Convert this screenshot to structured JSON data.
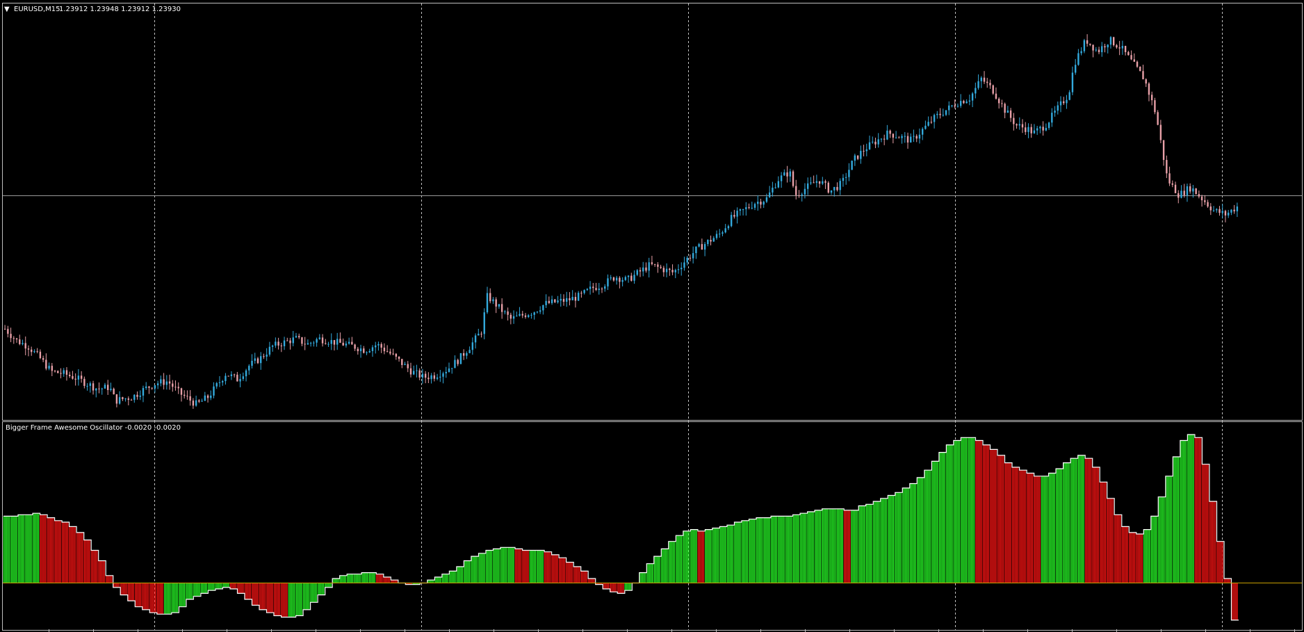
{
  "main_panel": {
    "symbol_label": "EURUSD,M15",
    "ohlc_label": "1.23912 1.23948 1.23912 1.23930",
    "collapse_glyph": "▼"
  },
  "indicator_panel": {
    "title": "Bigger Frame Awesome Oscillator -0.0020 -0.0020"
  },
  "colors": {
    "background": "#000000",
    "grid": "#c0c0c0",
    "bull_candle": "#33aadd",
    "bear_candle": "#e8a0a8",
    "ao_up": "#22dd22",
    "ao_down": "#dd1111",
    "ao_outline": "#ffffff",
    "zero_line": "#c8a000"
  },
  "chart_data": [
    {
      "type": "candlestick",
      "title": "EURUSD,M15",
      "close_path": [
        [
          0,
          0.215
        ],
        [
          2,
          0.185
        ],
        [
          4,
          0.17
        ],
        [
          6,
          0.14
        ],
        [
          8,
          0.105
        ],
        [
          10,
          0.1
        ],
        [
          12,
          0.09
        ],
        [
          14,
          0.075
        ],
        [
          16,
          0.06
        ],
        [
          18,
          0.065
        ],
        [
          19,
          0.03
        ],
        [
          22,
          0.04
        ],
        [
          24,
          0.06
        ],
        [
          26,
          0.075
        ],
        [
          28,
          0.08
        ],
        [
          30,
          0.05
        ],
        [
          33,
          0.02
        ],
        [
          35,
          0.04
        ],
        [
          38,
          0.1
        ],
        [
          40,
          0.085
        ],
        [
          42,
          0.12
        ],
        [
          44,
          0.14
        ],
        [
          46,
          0.17
        ],
        [
          48,
          0.18
        ],
        [
          50,
          0.19
        ],
        [
          52,
          0.175
        ],
        [
          54,
          0.19
        ],
        [
          57,
          0.18
        ],
        [
          60,
          0.17
        ],
        [
          62,
          0.16
        ],
        [
          64,
          0.175
        ],
        [
          66,
          0.155
        ],
        [
          68,
          0.13
        ],
        [
          70,
          0.105
        ],
        [
          72,
          0.09
        ],
        [
          74,
          0.095
        ],
        [
          76,
          0.11
        ],
        [
          78,
          0.135
        ],
        [
          80,
          0.17
        ],
        [
          82,
          0.21
        ],
        [
          83,
          0.3
        ],
        [
          85,
          0.27
        ],
        [
          87,
          0.24
        ],
        [
          89,
          0.25
        ],
        [
          91,
          0.26
        ],
        [
          93,
          0.28
        ],
        [
          95,
          0.285
        ],
        [
          97,
          0.29
        ],
        [
          99,
          0.3
        ],
        [
          101,
          0.32
        ],
        [
          103,
          0.33
        ],
        [
          105,
          0.35
        ],
        [
          107,
          0.34
        ],
        [
          109,
          0.36
        ],
        [
          111,
          0.38
        ],
        [
          113,
          0.37
        ],
        [
          115,
          0.36
        ],
        [
          117,
          0.39
        ],
        [
          119,
          0.42
        ],
        [
          121,
          0.44
        ],
        [
          123,
          0.46
        ],
        [
          125,
          0.5
        ],
        [
          127,
          0.52
        ],
        [
          129,
          0.54
        ],
        [
          131,
          0.55
        ],
        [
          133,
          0.6
        ],
        [
          135,
          0.62
        ],
        [
          136,
          0.56
        ],
        [
          138,
          0.58
        ],
        [
          140,
          0.6
        ],
        [
          142,
          0.57
        ],
        [
          144,
          0.59
        ],
        [
          146,
          0.65
        ],
        [
          148,
          0.68
        ],
        [
          150,
          0.7
        ],
        [
          152,
          0.72
        ],
        [
          154,
          0.71
        ],
        [
          156,
          0.7
        ],
        [
          158,
          0.73
        ],
        [
          160,
          0.76
        ],
        [
          162,
          0.78
        ],
        [
          164,
          0.8
        ],
        [
          166,
          0.81
        ],
        [
          168,
          0.86
        ],
        [
          170,
          0.83
        ],
        [
          172,
          0.78
        ],
        [
          174,
          0.74
        ],
        [
          176,
          0.73
        ],
        [
          177,
          0.72
        ],
        [
          179,
          0.74
        ],
        [
          181,
          0.78
        ],
        [
          183,
          0.82
        ],
        [
          184,
          0.9
        ],
        [
          186,
          0.96
        ],
        [
          188,
          0.93
        ],
        [
          190,
          0.96
        ],
        [
          192,
          0.94
        ],
        [
          194,
          0.9
        ],
        [
          196,
          0.86
        ],
        [
          198,
          0.77
        ],
        [
          200,
          0.6
        ],
        [
          202,
          0.56
        ],
        [
          204,
          0.58
        ],
        [
          206,
          0.55
        ],
        [
          208,
          0.52
        ],
        [
          210,
          0.51
        ],
        [
          212,
          0.53
        ]
      ],
      "series": [
        {
          "name": "bull"
        },
        {
          "name": "bear"
        }
      ]
    },
    {
      "type": "bar",
      "title": "Bigger Frame Awesome Oscillator -0.0020 -0.0020",
      "values": [
        0.45,
        0.45,
        0.46,
        0.46,
        0.47,
        0.46,
        0.44,
        0.42,
        0.41,
        0.38,
        0.34,
        0.29,
        0.22,
        0.15,
        0.05,
        -0.03,
        -0.08,
        -0.12,
        -0.16,
        -0.18,
        -0.2,
        -0.21,
        -0.21,
        -0.2,
        -0.16,
        -0.11,
        -0.09,
        -0.07,
        -0.05,
        -0.04,
        -0.03,
        -0.04,
        -0.07,
        -0.11,
        -0.15,
        -0.18,
        -0.2,
        -0.22,
        -0.23,
        -0.23,
        -0.22,
        -0.18,
        -0.13,
        -0.08,
        -0.03,
        0.03,
        0.05,
        0.06,
        0.06,
        0.07,
        0.07,
        0.06,
        0.04,
        0.02,
        0.0,
        -0.01,
        -0.01,
        0.0,
        0.02,
        0.04,
        0.06,
        0.08,
        0.11,
        0.15,
        0.18,
        0.2,
        0.22,
        0.23,
        0.24,
        0.24,
        0.23,
        0.22,
        0.22,
        0.22,
        0.21,
        0.19,
        0.17,
        0.14,
        0.11,
        0.08,
        0.03,
        -0.01,
        -0.04,
        -0.06,
        -0.07,
        -0.05,
        0.0,
        0.07,
        0.13,
        0.18,
        0.23,
        0.28,
        0.32,
        0.35,
        0.36,
        0.35,
        0.36,
        0.37,
        0.38,
        0.39,
        0.41,
        0.42,
        0.43,
        0.44,
        0.44,
        0.45,
        0.45,
        0.45,
        0.46,
        0.47,
        0.48,
        0.49,
        0.5,
        0.5,
        0.5,
        0.49,
        0.49,
        0.52,
        0.53,
        0.55,
        0.57,
        0.59,
        0.61,
        0.64,
        0.67,
        0.71,
        0.76,
        0.82,
        0.88,
        0.93,
        0.96,
        0.98,
        0.98,
        0.96,
        0.93,
        0.9,
        0.86,
        0.81,
        0.78,
        0.76,
        0.74,
        0.72,
        0.72,
        0.74,
        0.77,
        0.81,
        0.84,
        0.86,
        0.84,
        0.78,
        0.68,
        0.57,
        0.46,
        0.38,
        0.34,
        0.33,
        0.36,
        0.45,
        0.58,
        0.72,
        0.85,
        0.96,
        1.0,
        0.98,
        0.8,
        0.55,
        0.28,
        0.03,
        -0.25
      ],
      "colors_by_sign_of_change": [
        "ao_up",
        "ao_down"
      ],
      "zero_line": 0,
      "series": [
        {
          "name": "up"
        },
        {
          "name": "down"
        }
      ]
    }
  ]
}
